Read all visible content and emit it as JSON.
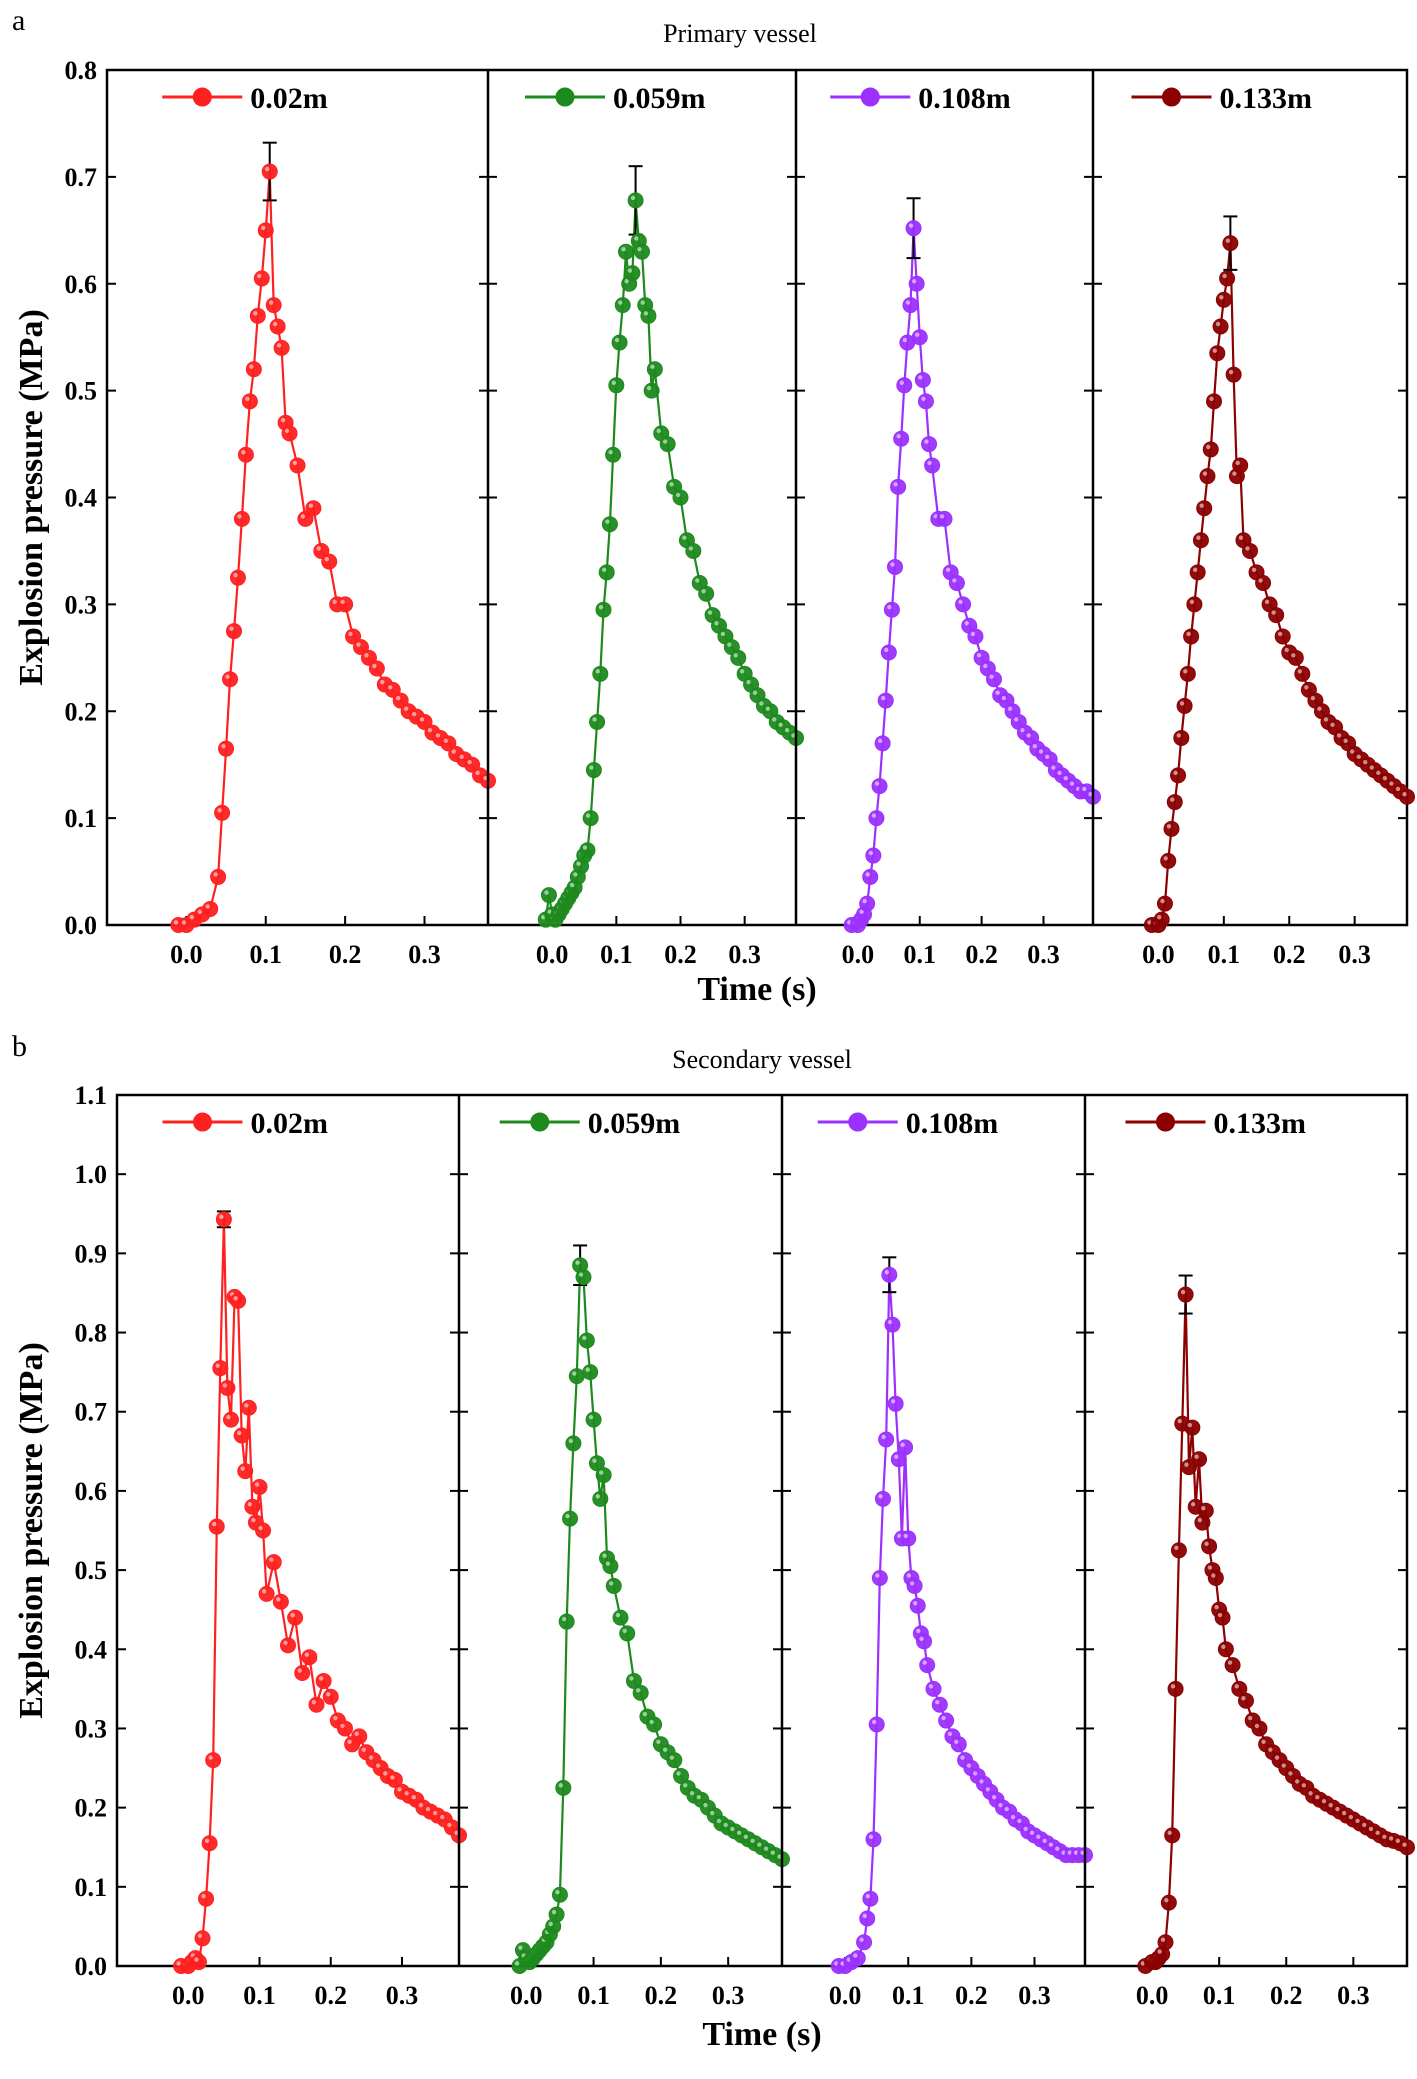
{
  "panel_a": {
    "letter": "a",
    "title": "Primary vessel"
  },
  "panel_b": {
    "letter": "b",
    "title": "Secondary vessel"
  },
  "series_colors": {
    "0.02m": "#ff2020",
    "0.059m": "#1e8a1e",
    "0.108m": "#9b30ff",
    "0.133m": "#8b0000"
  },
  "chart_data": [
    {
      "type": "line",
      "title": "Primary vessel",
      "xlabel": "Time (s)",
      "ylabel": "Explosion pressure (MPa)",
      "xlim": [
        -0.1,
        0.38
      ],
      "ylim": [
        0,
        0.8
      ],
      "yticks": [
        "0.0",
        "0.1",
        "0.2",
        "0.3",
        "0.4",
        "0.5",
        "0.6",
        "0.7",
        "0.8"
      ],
      "xticks": [
        "0.0",
        "0.1",
        "0.2",
        "0.3"
      ],
      "legend_placement": "top-center of each subpanel",
      "grid": false,
      "series": [
        {
          "name": "0.02m",
          "color": "#ff2020",
          "peak": 0.705,
          "peak_error": 0.027,
          "x": [
            -0.01,
            0.0,
            0.01,
            0.02,
            0.03,
            0.04,
            0.045,
            0.05,
            0.055,
            0.06,
            0.065,
            0.07,
            0.075,
            0.08,
            0.085,
            0.09,
            0.095,
            0.1,
            0.105,
            0.11,
            0.115,
            0.12,
            0.125,
            0.13,
            0.14,
            0.15,
            0.16,
            0.17,
            0.18,
            0.19,
            0.2,
            0.21,
            0.22,
            0.23,
            0.24,
            0.25,
            0.26,
            0.27,
            0.28,
            0.29,
            0.3,
            0.31,
            0.32,
            0.33,
            0.34,
            0.35,
            0.36,
            0.37,
            0.38
          ],
          "y": [
            0.0,
            0.0,
            0.005,
            0.01,
            0.015,
            0.045,
            0.105,
            0.165,
            0.23,
            0.275,
            0.325,
            0.38,
            0.44,
            0.49,
            0.52,
            0.57,
            0.605,
            0.65,
            0.705,
            0.58,
            0.56,
            0.54,
            0.47,
            0.46,
            0.43,
            0.38,
            0.39,
            0.35,
            0.34,
            0.3,
            0.3,
            0.27,
            0.26,
            0.25,
            0.24,
            0.225,
            0.22,
            0.21,
            0.2,
            0.195,
            0.19,
            0.18,
            0.175,
            0.17,
            0.16,
            0.155,
            0.15,
            0.14,
            0.135
          ]
        },
        {
          "name": "0.059m",
          "color": "#1e8a1e",
          "peak": 0.678,
          "peak_error": 0.032,
          "x": [
            -0.01,
            -0.005,
            0.0,
            0.005,
            0.01,
            0.015,
            0.02,
            0.025,
            0.03,
            0.035,
            0.04,
            0.045,
            0.05,
            0.055,
            0.06,
            0.065,
            0.07,
            0.075,
            0.08,
            0.085,
            0.09,
            0.095,
            0.1,
            0.105,
            0.11,
            0.115,
            0.12,
            0.125,
            0.13,
            0.135,
            0.14,
            0.145,
            0.15,
            0.155,
            0.16,
            0.17,
            0.18,
            0.19,
            0.2,
            0.21,
            0.22,
            0.23,
            0.24,
            0.25,
            0.26,
            0.27,
            0.28,
            0.29,
            0.3,
            0.31,
            0.32,
            0.33,
            0.34,
            0.35,
            0.36,
            0.37,
            0.38
          ],
          "y": [
            0.005,
            0.028,
            0.01,
            0.005,
            0.01,
            0.015,
            0.02,
            0.025,
            0.03,
            0.035,
            0.045,
            0.055,
            0.065,
            0.07,
            0.1,
            0.145,
            0.19,
            0.235,
            0.295,
            0.33,
            0.375,
            0.44,
            0.505,
            0.545,
            0.58,
            0.63,
            0.6,
            0.61,
            0.678,
            0.64,
            0.63,
            0.58,
            0.57,
            0.5,
            0.52,
            0.46,
            0.45,
            0.41,
            0.4,
            0.36,
            0.35,
            0.32,
            0.31,
            0.29,
            0.28,
            0.27,
            0.26,
            0.25,
            0.235,
            0.225,
            0.215,
            0.205,
            0.2,
            0.19,
            0.185,
            0.18,
            0.175
          ]
        },
        {
          "name": "0.108m",
          "color": "#9b30ff",
          "peak": 0.652,
          "peak_error": 0.028,
          "x": [
            -0.01,
            0.0,
            0.005,
            0.01,
            0.015,
            0.02,
            0.025,
            0.03,
            0.035,
            0.04,
            0.045,
            0.05,
            0.055,
            0.06,
            0.065,
            0.07,
            0.075,
            0.08,
            0.085,
            0.09,
            0.095,
            0.1,
            0.105,
            0.11,
            0.115,
            0.12,
            0.13,
            0.14,
            0.15,
            0.16,
            0.17,
            0.18,
            0.19,
            0.2,
            0.21,
            0.22,
            0.23,
            0.24,
            0.25,
            0.26,
            0.27,
            0.28,
            0.29,
            0.3,
            0.31,
            0.32,
            0.33,
            0.34,
            0.35,
            0.36,
            0.37,
            0.38
          ],
          "y": [
            0.0,
            0.0,
            0.005,
            0.01,
            0.02,
            0.045,
            0.065,
            0.1,
            0.13,
            0.17,
            0.21,
            0.255,
            0.295,
            0.335,
            0.41,
            0.455,
            0.505,
            0.545,
            0.58,
            0.652,
            0.6,
            0.55,
            0.51,
            0.49,
            0.45,
            0.43,
            0.38,
            0.38,
            0.33,
            0.32,
            0.3,
            0.28,
            0.27,
            0.25,
            0.24,
            0.23,
            0.215,
            0.21,
            0.2,
            0.19,
            0.18,
            0.175,
            0.165,
            0.16,
            0.155,
            0.145,
            0.14,
            0.135,
            0.13,
            0.125,
            0.125,
            0.12
          ]
        },
        {
          "name": "0.133m",
          "color": "#8b0000",
          "peak": 0.638,
          "peak_error": 0.025,
          "x": [
            -0.01,
            0.0,
            0.005,
            0.01,
            0.015,
            0.02,
            0.025,
            0.03,
            0.035,
            0.04,
            0.045,
            0.05,
            0.055,
            0.06,
            0.065,
            0.07,
            0.075,
            0.08,
            0.085,
            0.09,
            0.095,
            0.1,
            0.105,
            0.11,
            0.115,
            0.12,
            0.125,
            0.13,
            0.14,
            0.15,
            0.16,
            0.17,
            0.18,
            0.19,
            0.2,
            0.21,
            0.22,
            0.23,
            0.24,
            0.25,
            0.26,
            0.27,
            0.28,
            0.29,
            0.3,
            0.31,
            0.32,
            0.33,
            0.34,
            0.35,
            0.36,
            0.37,
            0.38
          ],
          "y": [
            0.0,
            0.0,
            0.005,
            0.02,
            0.06,
            0.09,
            0.115,
            0.14,
            0.175,
            0.205,
            0.235,
            0.27,
            0.3,
            0.33,
            0.36,
            0.39,
            0.42,
            0.445,
            0.49,
            0.535,
            0.56,
            0.585,
            0.605,
            0.638,
            0.515,
            0.42,
            0.43,
            0.36,
            0.35,
            0.33,
            0.32,
            0.3,
            0.29,
            0.27,
            0.255,
            0.25,
            0.235,
            0.22,
            0.21,
            0.2,
            0.19,
            0.185,
            0.175,
            0.17,
            0.16,
            0.155,
            0.15,
            0.145,
            0.14,
            0.135,
            0.13,
            0.125,
            0.12
          ]
        }
      ]
    },
    {
      "type": "line",
      "title": "Secondary vessel",
      "xlabel": "Time (s)",
      "ylabel": "Explosion pressure (MPa)",
      "xlim": [
        -0.1,
        0.38
      ],
      "ylim": [
        0,
        1.1
      ],
      "yticks": [
        "0.0",
        "0.1",
        "0.2",
        "0.3",
        "0.4",
        "0.5",
        "0.6",
        "0.7",
        "0.8",
        "0.9",
        "1.0",
        "1.1"
      ],
      "xticks": [
        "0.0",
        "0.1",
        "0.2",
        "0.3"
      ],
      "legend_placement": "top-center of each subpanel",
      "grid": false,
      "series": [
        {
          "name": "0.02m",
          "color": "#ff2020",
          "peak": 0.943,
          "peak_error": 0.01,
          "x": [
            -0.01,
            0.0,
            0.005,
            0.01,
            0.015,
            0.02,
            0.025,
            0.03,
            0.035,
            0.04,
            0.045,
            0.05,
            0.055,
            0.06,
            0.065,
            0.07,
            0.075,
            0.08,
            0.085,
            0.09,
            0.095,
            0.1,
            0.105,
            0.11,
            0.12,
            0.13,
            0.14,
            0.15,
            0.16,
            0.17,
            0.18,
            0.19,
            0.2,
            0.21,
            0.22,
            0.23,
            0.24,
            0.25,
            0.26,
            0.27,
            0.28,
            0.29,
            0.3,
            0.31,
            0.32,
            0.33,
            0.34,
            0.35,
            0.36,
            0.37,
            0.38
          ],
          "y": [
            0.0,
            0.0,
            0.005,
            0.01,
            0.005,
            0.035,
            0.085,
            0.155,
            0.26,
            0.555,
            0.755,
            0.943,
            0.73,
            0.69,
            0.845,
            0.84,
            0.67,
            0.625,
            0.705,
            0.58,
            0.56,
            0.605,
            0.55,
            0.47,
            0.51,
            0.46,
            0.405,
            0.44,
            0.37,
            0.39,
            0.33,
            0.36,
            0.34,
            0.31,
            0.3,
            0.28,
            0.29,
            0.27,
            0.26,
            0.25,
            0.24,
            0.235,
            0.22,
            0.215,
            0.21,
            0.2,
            0.195,
            0.19,
            0.185,
            0.175,
            0.165
          ]
        },
        {
          "name": "0.059m",
          "color": "#1e8a1e",
          "peak": 0.885,
          "peak_error": 0.025,
          "x": [
            -0.01,
            -0.005,
            0.0,
            0.005,
            0.01,
            0.015,
            0.02,
            0.025,
            0.03,
            0.035,
            0.04,
            0.045,
            0.05,
            0.055,
            0.06,
            0.065,
            0.07,
            0.075,
            0.08,
            0.085,
            0.09,
            0.095,
            0.1,
            0.105,
            0.11,
            0.115,
            0.12,
            0.125,
            0.13,
            0.14,
            0.15,
            0.16,
            0.17,
            0.18,
            0.19,
            0.2,
            0.21,
            0.22,
            0.23,
            0.24,
            0.25,
            0.26,
            0.27,
            0.28,
            0.29,
            0.3,
            0.31,
            0.32,
            0.33,
            0.34,
            0.35,
            0.36,
            0.37,
            0.38
          ],
          "y": [
            0.0,
            0.02,
            0.01,
            0.005,
            0.01,
            0.015,
            0.02,
            0.025,
            0.03,
            0.04,
            0.05,
            0.065,
            0.09,
            0.225,
            0.435,
            0.565,
            0.66,
            0.745,
            0.885,
            0.87,
            0.79,
            0.75,
            0.69,
            0.635,
            0.59,
            0.62,
            0.515,
            0.505,
            0.48,
            0.44,
            0.42,
            0.36,
            0.345,
            0.315,
            0.305,
            0.28,
            0.27,
            0.26,
            0.24,
            0.225,
            0.215,
            0.21,
            0.2,
            0.19,
            0.18,
            0.175,
            0.17,
            0.165,
            0.16,
            0.155,
            0.15,
            0.145,
            0.14,
            0.135
          ]
        },
        {
          "name": "0.108m",
          "color": "#9b30ff",
          "peak": 0.873,
          "peak_error": 0.022,
          "x": [
            -0.01,
            0.0,
            0.01,
            0.02,
            0.03,
            0.035,
            0.04,
            0.045,
            0.05,
            0.055,
            0.06,
            0.065,
            0.07,
            0.075,
            0.08,
            0.085,
            0.09,
            0.095,
            0.1,
            0.105,
            0.11,
            0.115,
            0.12,
            0.125,
            0.13,
            0.14,
            0.15,
            0.16,
            0.17,
            0.18,
            0.19,
            0.2,
            0.21,
            0.22,
            0.23,
            0.24,
            0.25,
            0.26,
            0.27,
            0.28,
            0.29,
            0.3,
            0.31,
            0.32,
            0.33,
            0.34,
            0.35,
            0.36,
            0.37,
            0.38
          ],
          "y": [
            0.0,
            0.0,
            0.005,
            0.01,
            0.03,
            0.06,
            0.085,
            0.16,
            0.305,
            0.49,
            0.59,
            0.665,
            0.873,
            0.81,
            0.71,
            0.64,
            0.54,
            0.655,
            0.54,
            0.49,
            0.48,
            0.455,
            0.42,
            0.41,
            0.38,
            0.35,
            0.33,
            0.31,
            0.29,
            0.28,
            0.26,
            0.25,
            0.24,
            0.23,
            0.22,
            0.21,
            0.2,
            0.195,
            0.185,
            0.18,
            0.17,
            0.165,
            0.16,
            0.155,
            0.15,
            0.145,
            0.14,
            0.14,
            0.14,
            0.14
          ]
        },
        {
          "name": "0.133m",
          "color": "#8b0000",
          "peak": 0.848,
          "peak_error": 0.024,
          "x": [
            -0.01,
            0.0,
            0.005,
            0.01,
            0.015,
            0.02,
            0.025,
            0.03,
            0.035,
            0.04,
            0.045,
            0.05,
            0.055,
            0.06,
            0.065,
            0.07,
            0.075,
            0.08,
            0.085,
            0.09,
            0.095,
            0.1,
            0.105,
            0.11,
            0.12,
            0.13,
            0.14,
            0.15,
            0.16,
            0.17,
            0.18,
            0.19,
            0.2,
            0.21,
            0.22,
            0.23,
            0.24,
            0.25,
            0.26,
            0.27,
            0.28,
            0.29,
            0.3,
            0.31,
            0.32,
            0.33,
            0.34,
            0.35,
            0.36,
            0.37,
            0.38
          ],
          "y": [
            0.0,
            0.005,
            0.005,
            0.01,
            0.015,
            0.03,
            0.08,
            0.165,
            0.35,
            0.525,
            0.685,
            0.848,
            0.63,
            0.68,
            0.58,
            0.64,
            0.56,
            0.575,
            0.53,
            0.5,
            0.49,
            0.45,
            0.44,
            0.4,
            0.38,
            0.35,
            0.335,
            0.31,
            0.3,
            0.28,
            0.27,
            0.26,
            0.25,
            0.24,
            0.23,
            0.225,
            0.215,
            0.21,
            0.205,
            0.2,
            0.195,
            0.19,
            0.185,
            0.18,
            0.175,
            0.17,
            0.165,
            0.16,
            0.158,
            0.155,
            0.15
          ]
        }
      ]
    }
  ]
}
